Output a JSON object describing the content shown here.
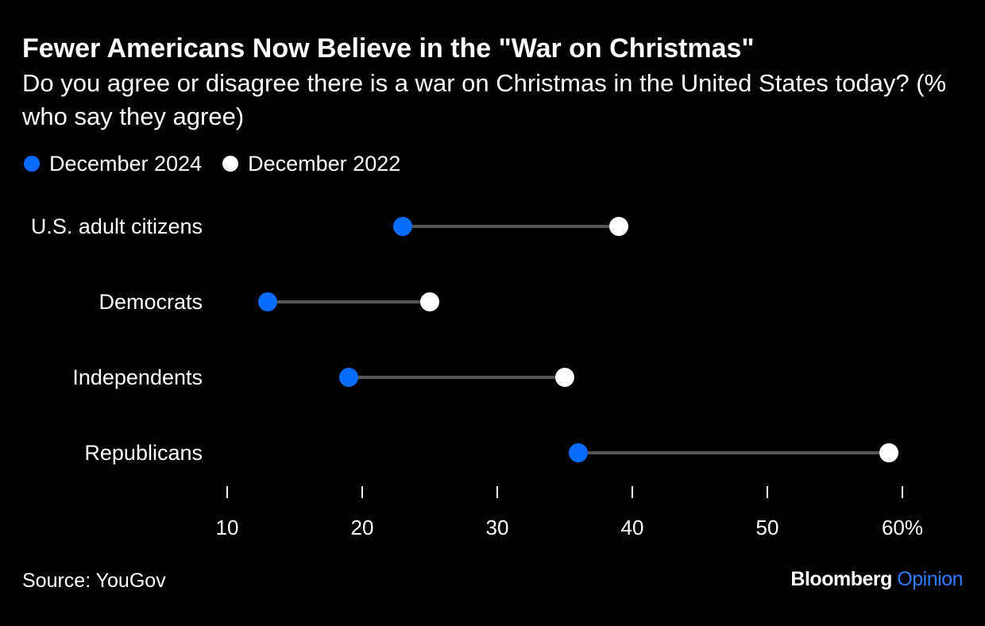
{
  "header": {
    "title": "Fewer Americans Now Believe in the \"War on Christmas\"",
    "subtitle": "Do you agree or disagree there is a war on Christmas in the United States today? (% who say they agree)"
  },
  "legend": {
    "series_2024": "December 2024",
    "series_2022": "December 2022"
  },
  "footer": {
    "source": "Source: YouGov",
    "brand_main": "Bloomberg",
    "brand_sub": "Opinion"
  },
  "colors": {
    "background": "#000000",
    "series_2024": "#0a6cff",
    "series_2022": "#ffffff",
    "connector": "#555555",
    "text": "#ffffff",
    "brand_accent": "#2f7cff"
  },
  "chart_data": {
    "type": "dumbbell",
    "title": "Fewer Americans Now Believe in the \"War on Christmas\"",
    "subtitle": "Do you agree or disagree there is a war on Christmas in the United States today? (% who say they agree)",
    "categories": [
      "U.S. adult citizens",
      "Democrats",
      "Independents",
      "Republicans"
    ],
    "series": [
      {
        "name": "December 2024",
        "values": [
          23,
          13,
          19,
          36
        ]
      },
      {
        "name": "December 2022",
        "values": [
          39,
          25,
          35,
          59
        ]
      }
    ],
    "xlim": [
      10,
      60
    ],
    "xticks": [
      10,
      20,
      30,
      40,
      50,
      60
    ],
    "xtick_labels": [
      "10",
      "20",
      "30",
      "40",
      "50",
      "60%"
    ],
    "xlabel": "",
    "ylabel": "",
    "grid": false,
    "legend_position": "top-left"
  }
}
